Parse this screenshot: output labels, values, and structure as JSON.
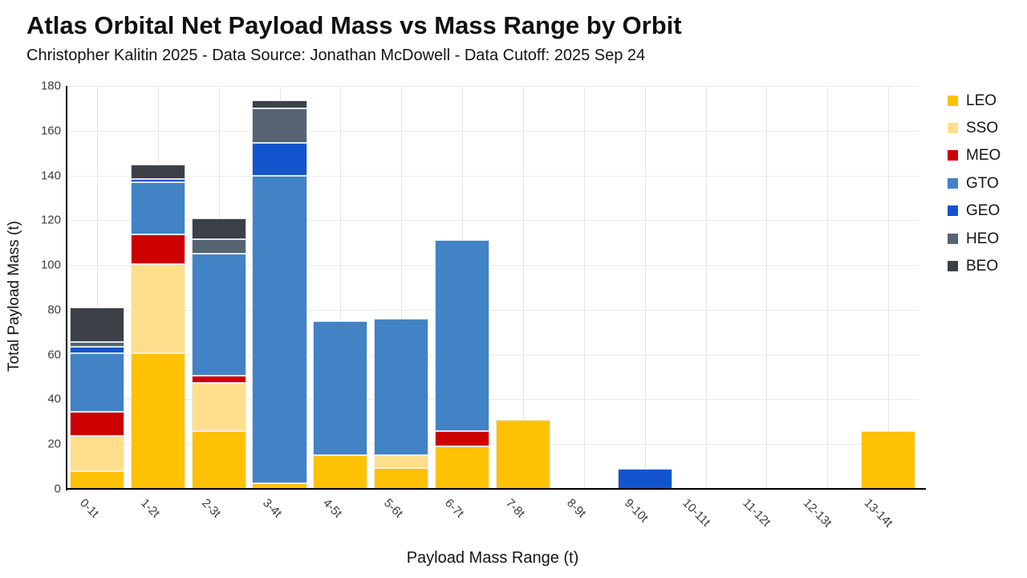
{
  "chart_data": {
    "type": "bar",
    "stacked": true,
    "title": "Atlas Orbital Net Payload Mass vs Mass Range by Orbit",
    "subtitle": "Christopher Kalitin 2025 - Data Source: Jonathan McDowell - Data Cutoff: 2025 Sep 24",
    "xlabel": "Payload Mass Range (t)",
    "ylabel": "Total Payload Mass (t)",
    "ylim": [
      0,
      180
    ],
    "yticks": [
      0,
      20,
      40,
      60,
      80,
      100,
      120,
      140,
      160,
      180
    ],
    "grid": true,
    "legend_position": "right",
    "x_tick_angle_deg": 45,
    "categories": [
      "0-1t",
      "1-2t",
      "2-3t",
      "3-4t",
      "4-5t",
      "5-6t",
      "6-7t",
      "7-8t",
      "8-9t",
      "9-10t",
      "10-11t",
      "11-12t",
      "12-13t",
      "13-14t"
    ],
    "series": [
      {
        "name": "LEO",
        "color": "#FFC104",
        "values": [
          8,
          60.5,
          26,
          2.5,
          15,
          9.5,
          19,
          31,
          0,
          0,
          0,
          0,
          0,
          26
        ]
      },
      {
        "name": "SSO",
        "color": "#FFDF8C",
        "values": [
          15.5,
          40,
          21.5,
          0,
          0,
          5.5,
          0,
          0,
          0,
          0,
          0,
          0,
          0,
          0
        ]
      },
      {
        "name": "MEO",
        "color": "#CC0001",
        "values": [
          11,
          13,
          3,
          0,
          0,
          0,
          7,
          0,
          0,
          0,
          0,
          0,
          0,
          0
        ]
      },
      {
        "name": "GTO",
        "color": "#4183C5",
        "values": [
          26,
          23.5,
          54.5,
          137.5,
          60,
          61,
          85,
          0,
          0,
          0,
          0,
          0,
          0,
          0
        ]
      },
      {
        "name": "GEO",
        "color": "#1254CE",
        "values": [
          3,
          1.5,
          0,
          14.5,
          0,
          0,
          0,
          0,
          0,
          9,
          0,
          0,
          0,
          0
        ]
      },
      {
        "name": "HEO",
        "color": "#566472",
        "values": [
          2,
          0,
          6.5,
          15.5,
          0,
          0,
          0,
          0,
          0,
          0,
          0,
          0,
          0,
          0
        ]
      },
      {
        "name": "BEO",
        "color": "#3B4147",
        "values": [
          15.5,
          6.5,
          9.5,
          3.5,
          0,
          0,
          0,
          0,
          0,
          0,
          0,
          0,
          0,
          0
        ]
      }
    ],
    "bar_totals": [
      81,
      145,
      121,
      173.5,
      75,
      76,
      111,
      31,
      0,
      9,
      0,
      0,
      0,
      26
    ]
  }
}
